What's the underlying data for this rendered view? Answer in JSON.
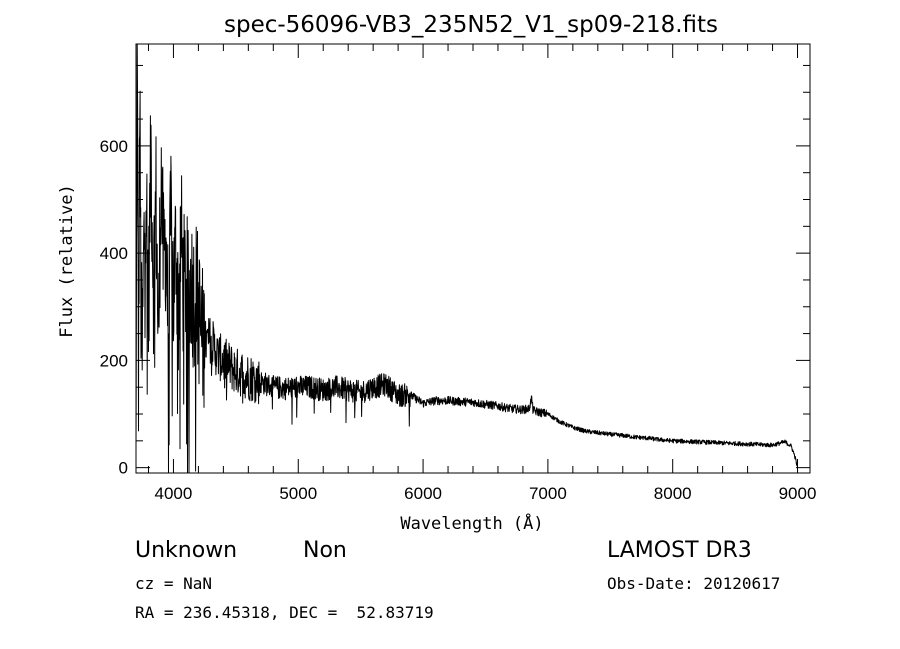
{
  "chart_data": {
    "type": "line",
    "title": "spec-56096-VB3_235N52_V1_sp09-218.fits",
    "xlabel": "Wavelength (Å)",
    "ylabel": "Flux (relative)",
    "xlim": [
      3700,
      9100
    ],
    "ylim": [
      -10,
      790
    ],
    "xticks": [
      4000,
      5000,
      6000,
      7000,
      8000,
      9000
    ],
    "yticks": [
      0,
      200,
      400,
      600
    ],
    "xtick_labels": [
      "4000",
      "5000",
      "6000",
      "7000",
      "8000",
      "9000"
    ],
    "ytick_labels": [
      "0",
      "200",
      "400",
      "600"
    ],
    "grid": false,
    "series": [
      {
        "x": [
          3700,
          3710,
          3720,
          3730,
          3740,
          3750,
          3760,
          3780,
          3800,
          3820,
          3840,
          3860,
          3880,
          3900,
          3920,
          3940,
          3960,
          3980,
          4000,
          4020,
          4040,
          4060,
          4080,
          4100,
          4120,
          4140,
          4160,
          4180,
          4200,
          4220,
          4250,
          4300,
          4350,
          4400,
          4450,
          4500,
          4600,
          4700,
          4800,
          4900,
          5000,
          5100,
          5200,
          5300,
          5400,
          5500,
          5600,
          5700,
          5800,
          5900,
          6000,
          6100,
          6200,
          6300,
          6400,
          6500,
          6600,
          6700,
          6800,
          6850,
          6870,
          6880,
          6900,
          7000,
          7100,
          7200,
          7300,
          7400,
          7500,
          7600,
          7700,
          7800,
          7900,
          8000,
          8100,
          8200,
          8300,
          8400,
          8500,
          8600,
          8700,
          8800,
          8850,
          8900,
          8950,
          8980,
          9000
        ],
        "y": [
          -10,
          760,
          150,
          680,
          300,
          200,
          380,
          540,
          300,
          590,
          350,
          500,
          230,
          560,
          380,
          430,
          250,
          470,
          320,
          420,
          290,
          440,
          330,
          360,
          300,
          350,
          320,
          330,
          300,
          250,
          230,
          240,
          210,
          200,
          190,
          180,
          170,
          160,
          150,
          148,
          150,
          150,
          145,
          150,
          145,
          140,
          150,
          155,
          135,
          135,
          120,
          125,
          125,
          123,
          122,
          118,
          115,
          110,
          108,
          110,
          130,
          108,
          105,
          100,
          85,
          75,
          68,
          65,
          62,
          60,
          57,
          55,
          52,
          50,
          49,
          48,
          47,
          46,
          45,
          44,
          43,
          42,
          45,
          48,
          40,
          20,
          0
        ]
      }
    ]
  },
  "info": {
    "object_class": "Unknown",
    "object_subclass": "Non",
    "survey": "LAMOST DR3",
    "redshift": "cz = NaN",
    "obs_date": "Obs-Date: 20120617",
    "coords": "RA = 236.45318, DEC =  52.83719"
  }
}
